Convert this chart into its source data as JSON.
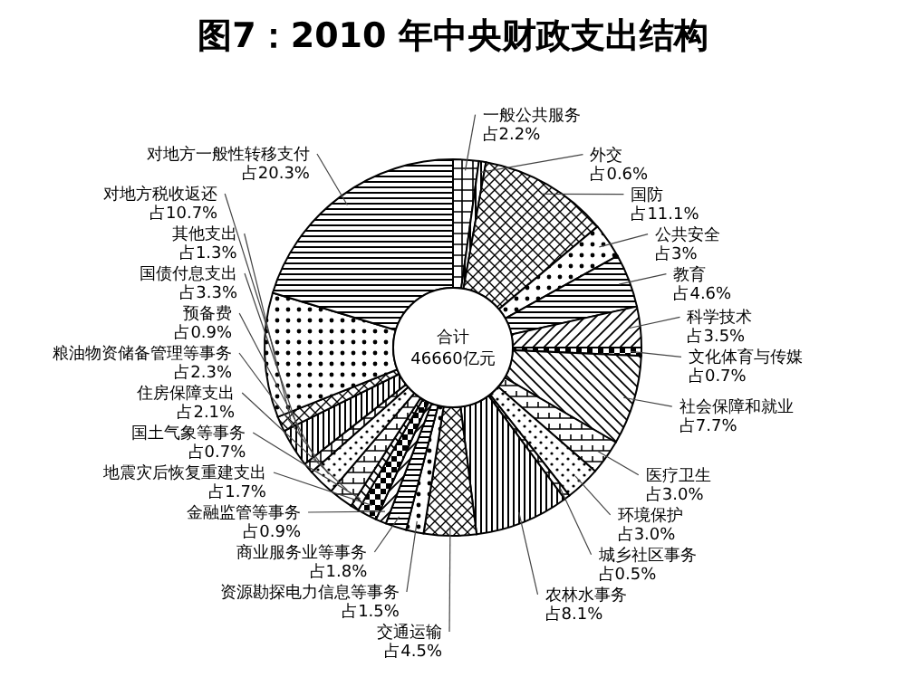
{
  "chart_data": {
    "type": "donut",
    "title": "图7：2010 年中央财政支出结构",
    "categories": [
      "一般公共服务",
      "外交",
      "国防",
      "公共安全",
      "教育",
      "科学技术",
      "文化体育与传媒",
      "社会保障和就业",
      "医疗卫生",
      "环境保护",
      "城乡社区事务",
      "农林水事务",
      "交通运输",
      "资源勘探电力信息等事务",
      "商业服务业等事务",
      "金融监管等事务",
      "地震灾后恢复重建支出",
      "国土气象等事务",
      "住房保障支出",
      "粮油物资储备管理等事务",
      "预备费",
      "国债付息支出",
      "其他支出",
      "对地方税收返还",
      "对地方一般性转移支付"
    ],
    "values": [
      2.2,
      0.6,
      11.1,
      3,
      4.6,
      3.5,
      0.7,
      7.7,
      3.0,
      3.0,
      0.5,
      8.1,
      4.5,
      1.5,
      1.8,
      0.9,
      1.7,
      0.7,
      2.1,
      2.3,
      0.9,
      3.3,
      1.3,
      10.7,
      20.3
    ],
    "value_labels": [
      "占2.2%",
      "占0.6%",
      "占11.1%",
      "占3%",
      "占4.6%",
      "占3.5%",
      "占0.7%",
      "占7.7%",
      "占3.0%",
      "占3.0%",
      "占0.5%",
      "占8.1%",
      "占4.5%",
      "占1.5%",
      "占1.8%",
      "占0.9%",
      "占1.7%",
      "占0.7%",
      "占2.1%",
      "占2.3%",
      "占0.9%",
      "占3.3%",
      "占1.3%",
      "占10.7%",
      "占20.3%"
    ],
    "annotations": [
      "合计\n46660亿元"
    ]
  }
}
